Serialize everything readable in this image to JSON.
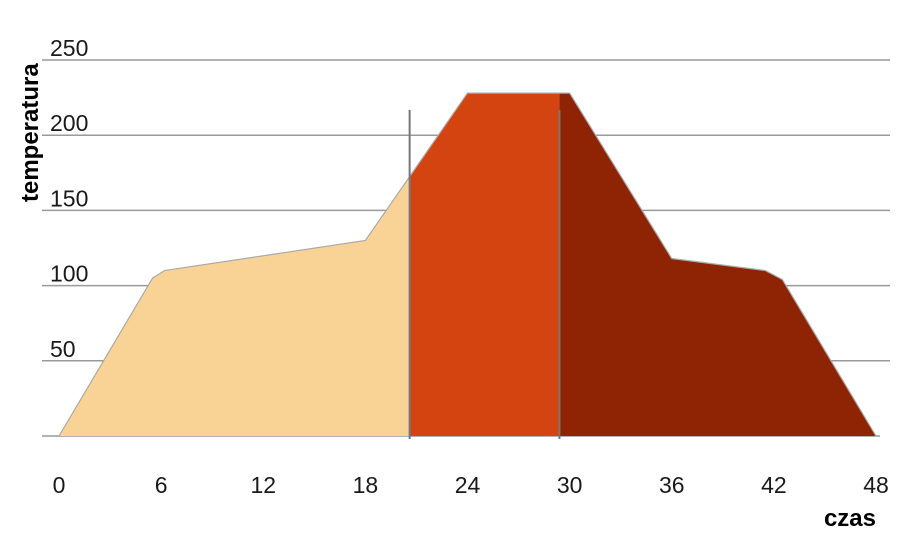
{
  "chart_data": {
    "type": "area",
    "xlabel": "czas",
    "ylabel": "temperatura",
    "xlim": [
      0,
      48
    ],
    "ylim": [
      0,
      250
    ],
    "x_ticks": [
      0,
      6,
      12,
      18,
      24,
      30,
      36,
      42,
      48
    ],
    "y_ticks": [
      50,
      100,
      150,
      200,
      250
    ],
    "grid": "horizontal",
    "points": [
      {
        "x": 0,
        "y": 0
      },
      {
        "x": 5.5,
        "y": 105
      },
      {
        "x": 6.2,
        "y": 110
      },
      {
        "x": 18,
        "y": 130
      },
      {
        "x": 24,
        "y": 228
      },
      {
        "x": 30,
        "y": 228
      },
      {
        "x": 36,
        "y": 118
      },
      {
        "x": 41.5,
        "y": 110
      },
      {
        "x": 42.5,
        "y": 104
      },
      {
        "x": 48,
        "y": 0
      }
    ],
    "phases": [
      {
        "x_start": 0,
        "x_end": 20.6,
        "color": "#F9D296"
      },
      {
        "x_start": 20.6,
        "x_end": 29.4,
        "color": "#D44410"
      },
      {
        "x_start": 29.4,
        "x_end": 48,
        "color": "#8F2405"
      }
    ],
    "phase_boundaries": [
      20.6,
      29.4
    ],
    "colors": {
      "grid": "#9a9a9a",
      "divider": "#777777",
      "outline": "#aaaaaa"
    }
  }
}
